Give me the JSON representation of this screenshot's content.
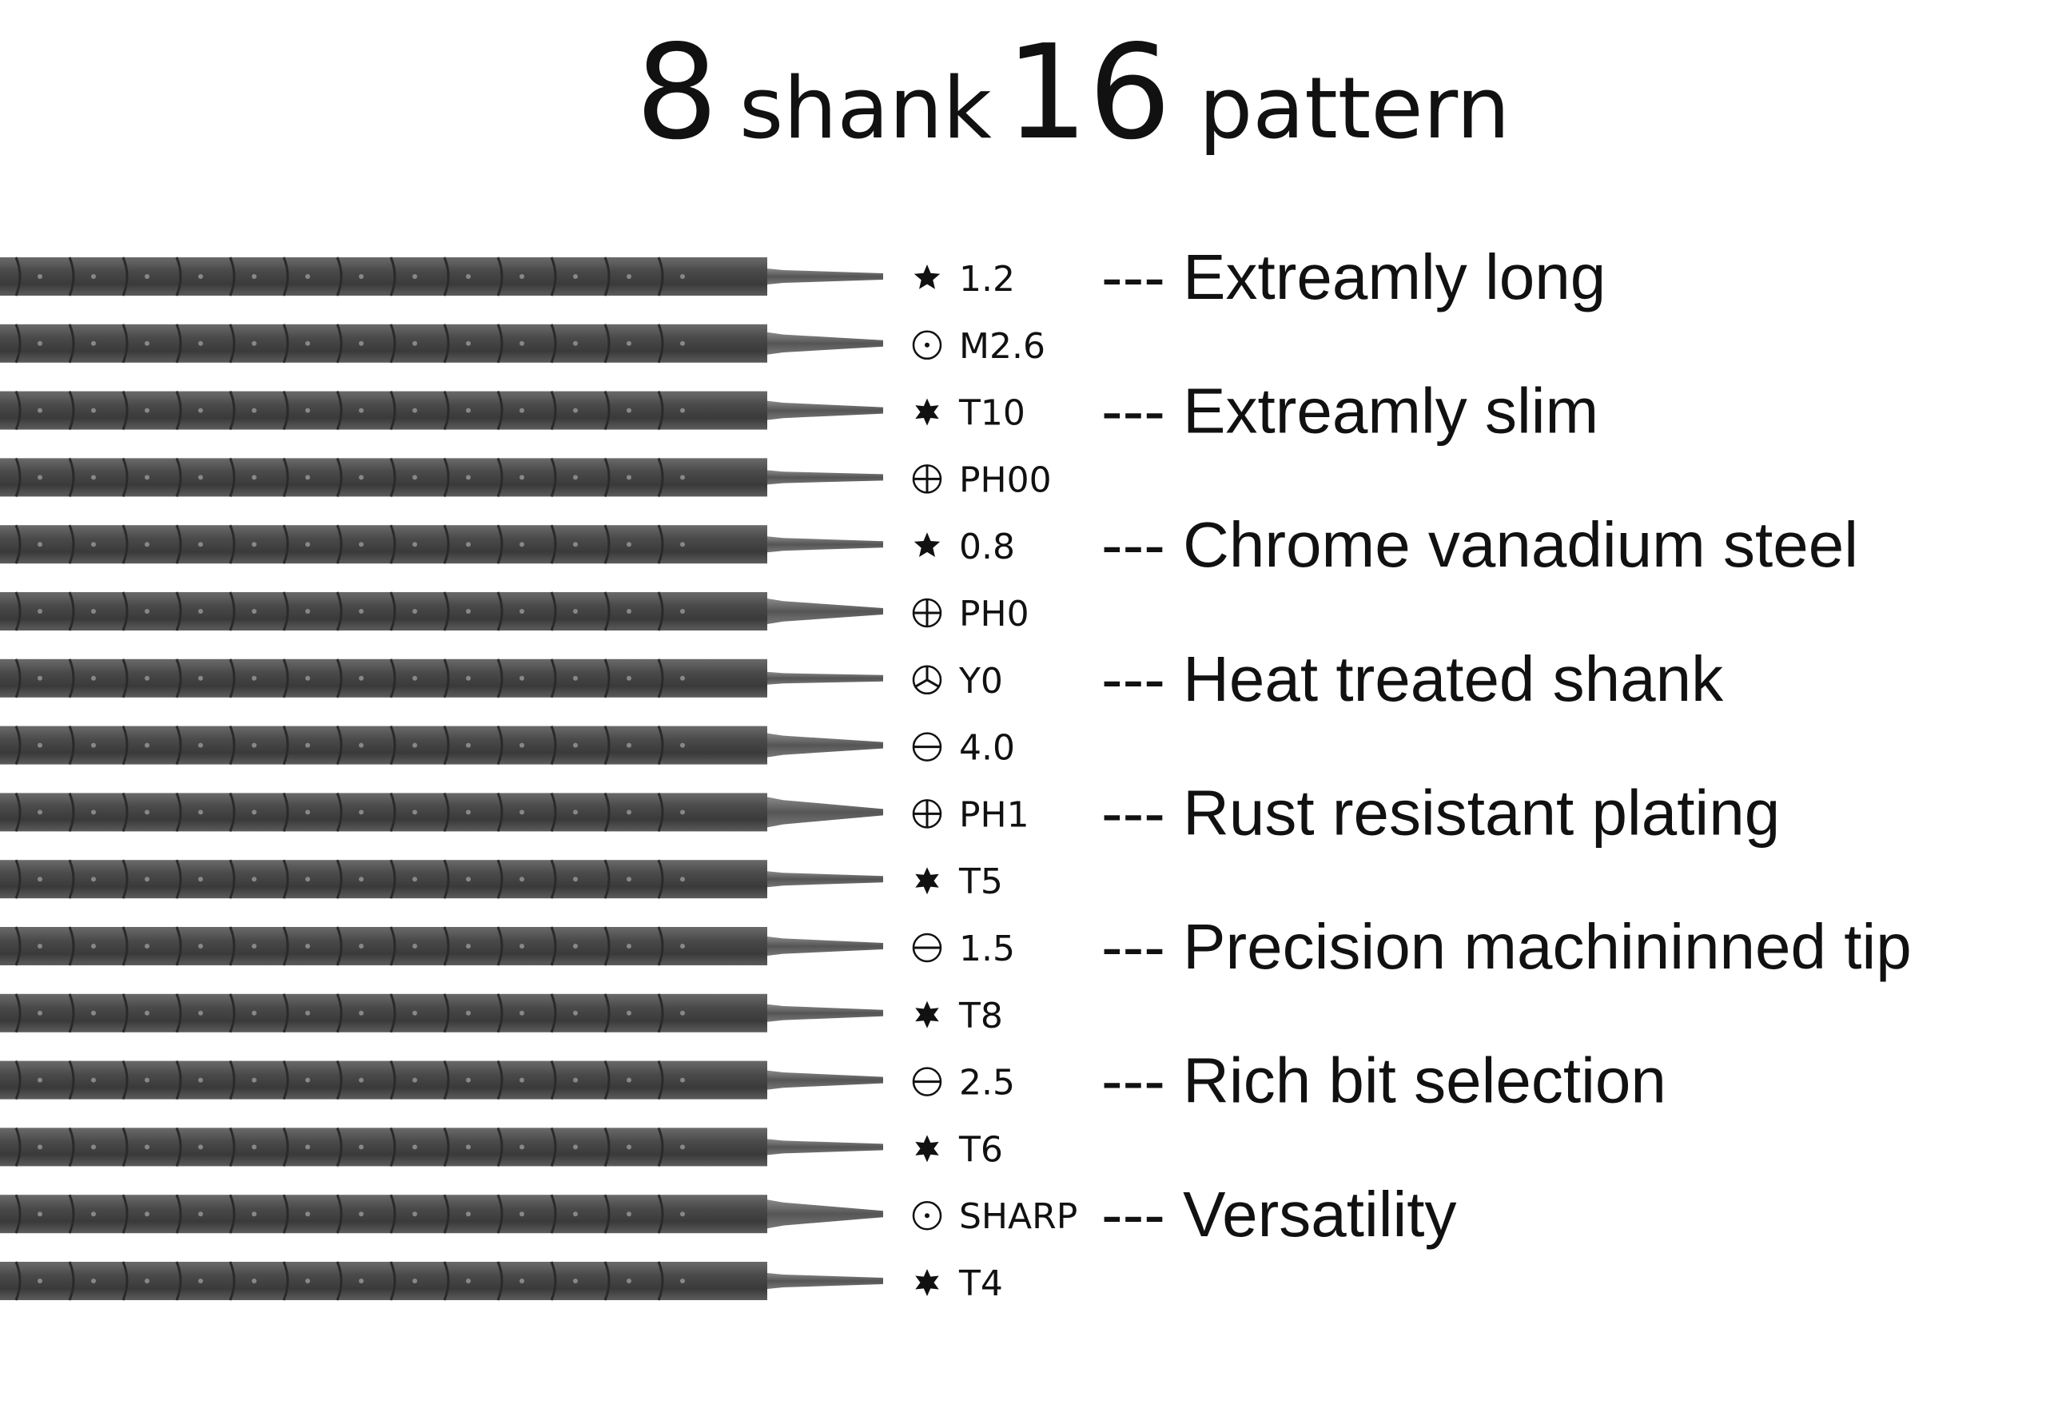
{
  "header": {
    "title": [
      "8",
      "shank",
      "16",
      "pattern"
    ]
  },
  "bits": [
    "1.2",
    "M2.6",
    "T10",
    "PH00",
    "0.8",
    "PH0",
    "Y0",
    "4.0",
    "PH1",
    "T5",
    "1.5",
    "T8",
    "2.5",
    "T6",
    "SHARP",
    "T4"
  ],
  "features": [
    "--- Extreamly long",
    "--- Extreamly slim",
    "--- Chrome vanadium steel",
    "--- Heat treated shank",
    "--- Rust resistant plating",
    "--- Precision machininned tip",
    "--- Rich bit selection",
    "--- Versatility"
  ]
}
